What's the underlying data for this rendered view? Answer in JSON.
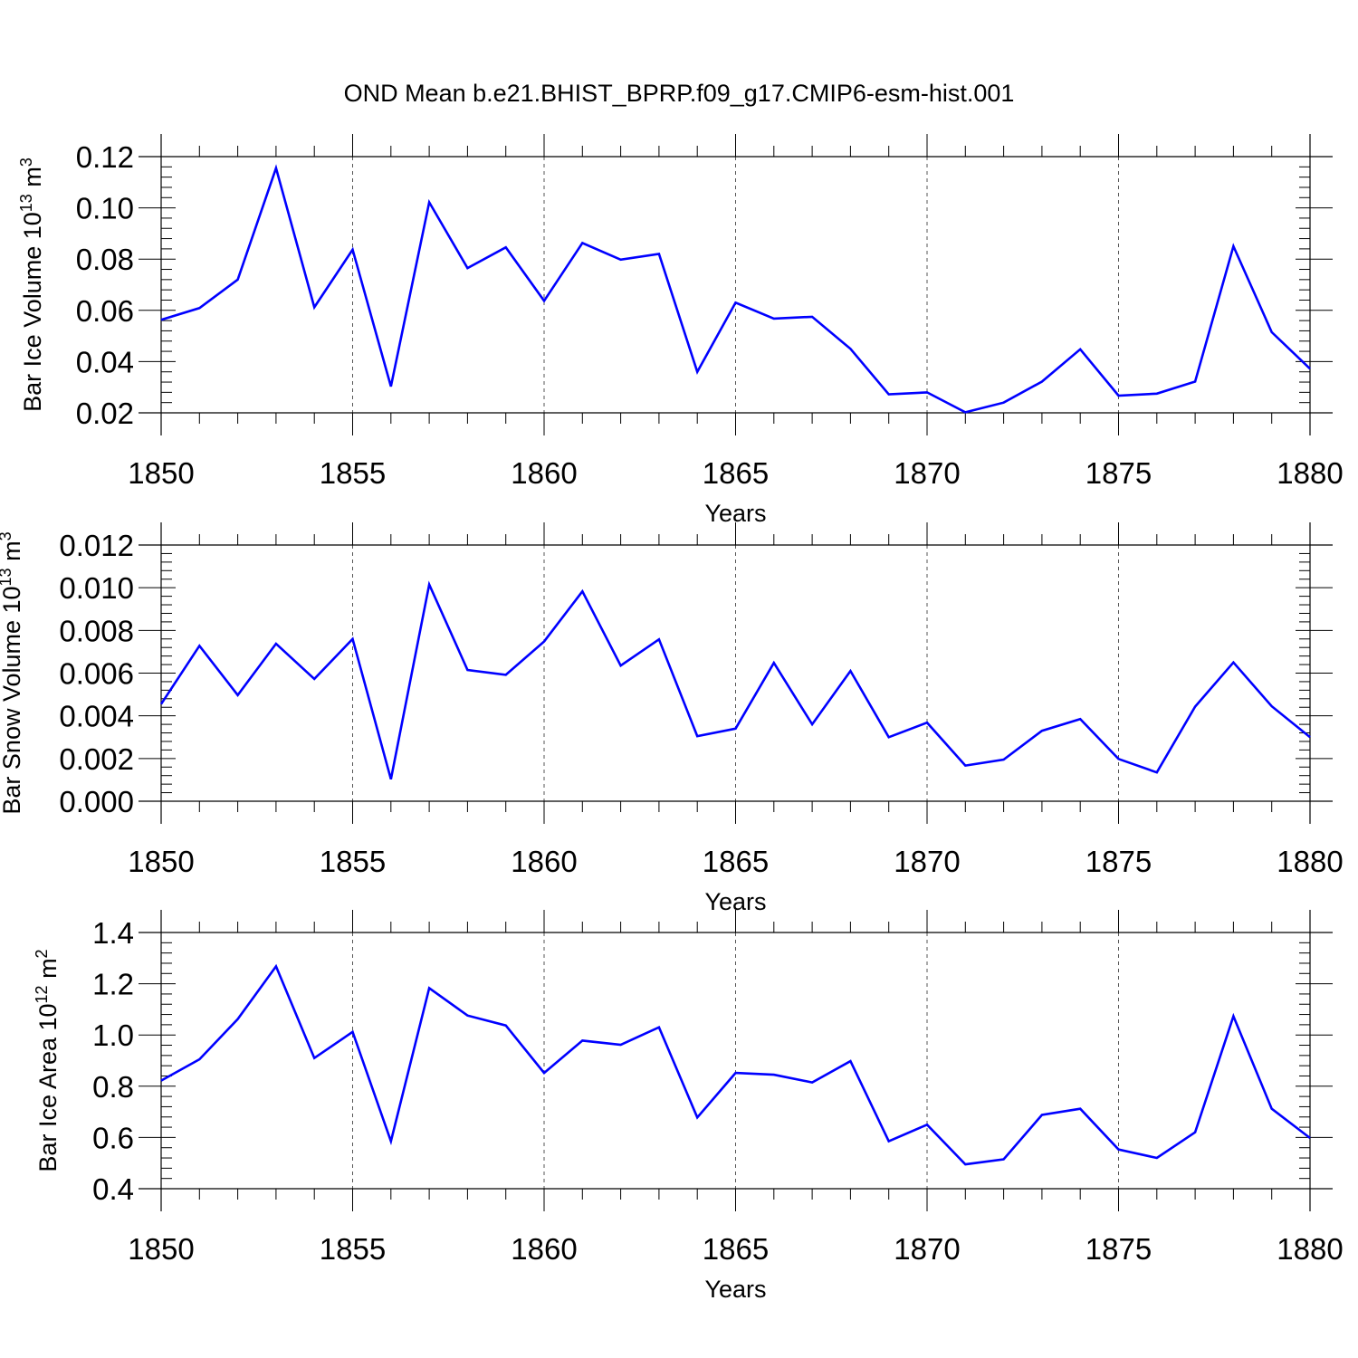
{
  "title": "OND Mean b.e21.BHIST_BPRP.f09_g17.CMIP6-esm-hist.001",
  "colors": {
    "line": "#0000ff",
    "axis": "#000000",
    "grid": "#555555"
  },
  "chart_data": [
    {
      "type": "line",
      "title": "OND Mean b.e21.BHIST_BPRP.f09_g17.CMIP6-esm-hist.001",
      "xlabel": "Years",
      "ylabel": "Bar Ice Volume 10",
      "ylabel_sup": "13",
      "ylabel_unit": "m",
      "ylabel_unit_sup": "3",
      "xlim": [
        1850,
        1880
      ],
      "ylim": [
        0.02,
        0.12
      ],
      "x_ticks": [
        1850,
        1855,
        1860,
        1865,
        1870,
        1875,
        1880
      ],
      "x_tick_labels": [
        "1850",
        "1855",
        "1860",
        "1865",
        "1870",
        "1875",
        "1880"
      ],
      "y_ticks": [
        0.02,
        0.04,
        0.06,
        0.08,
        0.1,
        0.12
      ],
      "y_tick_labels": [
        "0.02",
        "0.04",
        "0.06",
        "0.08",
        "0.10",
        "0.12"
      ],
      "grid": "vertical dashed at major x ticks",
      "x": [
        1850,
        1851,
        1852,
        1853,
        1854,
        1855,
        1856,
        1857,
        1858,
        1859,
        1860,
        1861,
        1862,
        1863,
        1864,
        1865,
        1866,
        1867,
        1868,
        1869,
        1870,
        1871,
        1872,
        1873,
        1874,
        1875,
        1876,
        1877,
        1878,
        1879,
        1880
      ],
      "values": [
        0.0563,
        0.0609,
        0.072,
        0.1155,
        0.0612,
        0.0837,
        0.0303,
        0.1022,
        0.0765,
        0.0846,
        0.0637,
        0.0863,
        0.0798,
        0.082,
        0.036,
        0.063,
        0.0568,
        0.0575,
        0.045,
        0.0272,
        0.028,
        0.0202,
        0.024,
        0.0322,
        0.0448,
        0.0267,
        0.0275,
        0.0322,
        0.085,
        0.0515,
        0.0372
      ]
    },
    {
      "type": "line",
      "xlabel": "Years",
      "ylabel": "Bar Snow Volume 10",
      "ylabel_sup": "13",
      "ylabel_unit": "m",
      "ylabel_unit_sup": "3",
      "xlim": [
        1850,
        1880
      ],
      "ylim": [
        0.0,
        0.012
      ],
      "x_ticks": [
        1850,
        1855,
        1860,
        1865,
        1870,
        1875,
        1880
      ],
      "x_tick_labels": [
        "1850",
        "1855",
        "1860",
        "1865",
        "1870",
        "1875",
        "1880"
      ],
      "y_ticks": [
        0.0,
        0.002,
        0.004,
        0.006,
        0.008,
        0.01,
        0.012
      ],
      "y_tick_labels": [
        "0.000",
        "0.002",
        "0.004",
        "0.006",
        "0.008",
        "0.010",
        "0.012"
      ],
      "grid": "vertical dashed at major x ticks",
      "x": [
        1850,
        1851,
        1852,
        1853,
        1854,
        1855,
        1856,
        1857,
        1858,
        1859,
        1860,
        1861,
        1862,
        1863,
        1864,
        1865,
        1866,
        1867,
        1868,
        1869,
        1870,
        1871,
        1872,
        1873,
        1874,
        1875,
        1876,
        1877,
        1878,
        1879,
        1880
      ],
      "values": [
        0.00455,
        0.00728,
        0.00497,
        0.00738,
        0.00573,
        0.0076,
        0.00103,
        0.01015,
        0.00615,
        0.00592,
        0.00748,
        0.00983,
        0.00635,
        0.00758,
        0.00305,
        0.0034,
        0.00648,
        0.0036,
        0.0061,
        0.003,
        0.00368,
        0.00167,
        0.00195,
        0.0033,
        0.00385,
        0.00198,
        0.00135,
        0.00443,
        0.0065,
        0.00445,
        0.003
      ]
    },
    {
      "type": "line",
      "xlabel": "Years",
      "ylabel": "Bar Ice Area 10",
      "ylabel_sup": "12",
      "ylabel_unit": "m",
      "ylabel_unit_sup": "2",
      "xlim": [
        1850,
        1880
      ],
      "ylim": [
        0.4,
        1.4
      ],
      "x_ticks": [
        1850,
        1855,
        1860,
        1865,
        1870,
        1875,
        1880
      ],
      "x_tick_labels": [
        "1850",
        "1855",
        "1860",
        "1865",
        "1870",
        "1875",
        "1880"
      ],
      "y_ticks": [
        0.4,
        0.6,
        0.8,
        1.0,
        1.2,
        1.4
      ],
      "y_tick_labels": [
        "0.4",
        "0.6",
        "0.8",
        "1.0",
        "1.2",
        "1.4"
      ],
      "grid": "vertical dashed at major x ticks",
      "x": [
        1850,
        1851,
        1852,
        1853,
        1854,
        1855,
        1856,
        1857,
        1858,
        1859,
        1860,
        1861,
        1862,
        1863,
        1864,
        1865,
        1866,
        1867,
        1868,
        1869,
        1870,
        1871,
        1872,
        1873,
        1874,
        1875,
        1876,
        1877,
        1878,
        1879,
        1880
      ],
      "values": [
        0.822,
        0.905,
        1.062,
        1.268,
        0.91,
        1.012,
        0.585,
        1.183,
        1.076,
        1.037,
        0.852,
        0.978,
        0.962,
        1.03,
        0.678,
        0.852,
        0.845,
        0.815,
        0.898,
        0.585,
        0.65,
        0.495,
        0.515,
        0.688,
        0.712,
        0.553,
        0.52,
        0.62,
        1.073,
        0.712,
        0.598
      ]
    }
  ]
}
